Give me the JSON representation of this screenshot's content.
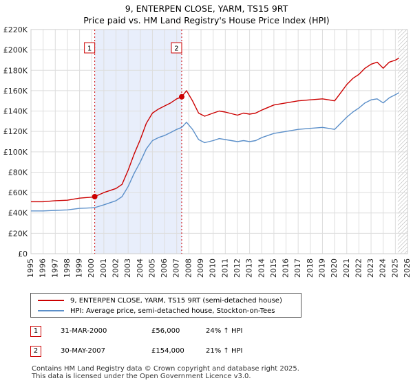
{
  "header": {
    "title": "9, ENTERPEN CLOSE, YARM, TS15 9RT",
    "subtitle": "Price paid vs. HM Land Registry's House Price Index (HPI)"
  },
  "colors": {
    "price_line": "#cc0000",
    "hpi_line": "#5b8fc9",
    "shade": "#e8eefb",
    "grid": "#dddddd"
  },
  "chart_data": {
    "type": "line",
    "xlim": [
      1995,
      2026
    ],
    "ylim": [
      0,
      220000
    ],
    "x_ticks": [
      1995,
      1996,
      1997,
      1998,
      1999,
      2000,
      2001,
      2002,
      2003,
      2004,
      2005,
      2006,
      2007,
      2008,
      2009,
      2010,
      2011,
      2012,
      2013,
      2014,
      2015,
      2016,
      2017,
      2018,
      2019,
      2020,
      2021,
      2022,
      2023,
      2024,
      2025,
      2026
    ],
    "y_ticks": [
      0,
      20000,
      40000,
      60000,
      80000,
      100000,
      120000,
      140000,
      160000,
      180000,
      200000,
      220000
    ],
    "y_tick_labels": [
      "£0",
      "£20K",
      "£40K",
      "£60K",
      "£80K",
      "£100K",
      "£120K",
      "£140K",
      "£160K",
      "£180K",
      "£200K",
      "£220K"
    ],
    "shaded_range": [
      2000.25,
      2007.41
    ],
    "hatched_from": 2025.2,
    "series": [
      {
        "name": "9, ENTERPEN CLOSE, YARM, TS15 9RT (semi-detached house)",
        "x": [
          1995,
          1996,
          1997,
          1998,
          1999,
          2000,
          2000.25,
          2001,
          2002,
          2002.5,
          2003,
          2003.5,
          2004,
          2004.5,
          2005,
          2005.5,
          2006,
          2006.5,
          2007,
          2007.41,
          2007.8,
          2008.3,
          2008.8,
          2009.3,
          2010,
          2010.5,
          2011,
          2012,
          2012.5,
          2013,
          2013.5,
          2014,
          2015,
          2016,
          2017,
          2018,
          2019,
          2019.5,
          2020,
          2020.5,
          2021,
          2021.5,
          2022,
          2022.5,
          2023,
          2023.5,
          2024,
          2024.5,
          2025,
          2025.3
        ],
        "values": [
          51000,
          51000,
          52000,
          52500,
          54500,
          55500,
          56000,
          60000,
          64000,
          68000,
          82000,
          98000,
          112000,
          128000,
          138000,
          142000,
          145000,
          148000,
          152000,
          154000,
          160000,
          150000,
          138000,
          135000,
          138000,
          140000,
          139000,
          136000,
          138000,
          137000,
          138000,
          141000,
          146000,
          148000,
          150000,
          151000,
          152000,
          151000,
          150000,
          158000,
          166000,
          172000,
          176000,
          182000,
          186000,
          188000,
          182000,
          188000,
          190000,
          192000
        ]
      },
      {
        "name": "HPI: Average price, semi-detached house, Stockton-on-Tees",
        "x": [
          1995,
          1996,
          1997,
          1998,
          1999,
          2000,
          2000.25,
          2001,
          2002,
          2002.5,
          2003,
          2003.5,
          2004,
          2004.5,
          2005,
          2005.5,
          2006,
          2006.5,
          2007,
          2007.41,
          2007.8,
          2008.3,
          2008.8,
          2009.3,
          2010,
          2010.5,
          2011,
          2012,
          2012.5,
          2013,
          2013.5,
          2014,
          2015,
          2016,
          2017,
          2018,
          2019,
          2019.5,
          2020,
          2020.5,
          2021,
          2021.5,
          2022,
          2022.5,
          2023,
          2023.5,
          2024,
          2024.5,
          2025,
          2025.3
        ],
        "values": [
          42000,
          42000,
          42500,
          43000,
          44500,
          45000,
          45200,
          48000,
          52000,
          56000,
          66000,
          79000,
          90000,
          103000,
          111000,
          114000,
          116000,
          119000,
          122000,
          124000,
          129000,
          122000,
          112000,
          109000,
          111000,
          113000,
          112000,
          110000,
          111000,
          110000,
          111000,
          114000,
          118000,
          120000,
          122000,
          123000,
          124000,
          123000,
          122000,
          128000,
          134000,
          139000,
          143000,
          148000,
          151000,
          152000,
          148000,
          153000,
          156000,
          158000
        ]
      }
    ],
    "markers": [
      {
        "label": "1",
        "x": 2000.25,
        "value": 56000
      },
      {
        "label": "2",
        "x": 2007.41,
        "value": 154000
      }
    ]
  },
  "legend": {
    "items": [
      "9, ENTERPEN CLOSE, YARM, TS15 9RT (semi-detached house)",
      "HPI: Average price, semi-detached house, Stockton-on-Tees"
    ]
  },
  "transactions": [
    {
      "id": "1",
      "date": "31-MAR-2000",
      "price": "£56,000",
      "hpi": "24% ↑ HPI"
    },
    {
      "id": "2",
      "date": "30-MAY-2007",
      "price": "£154,000",
      "hpi": "21% ↑ HPI"
    }
  ],
  "footer": {
    "line1": "Contains HM Land Registry data © Crown copyright and database right 2025.",
    "line2": "This data is licensed under the Open Government Licence v3.0."
  }
}
